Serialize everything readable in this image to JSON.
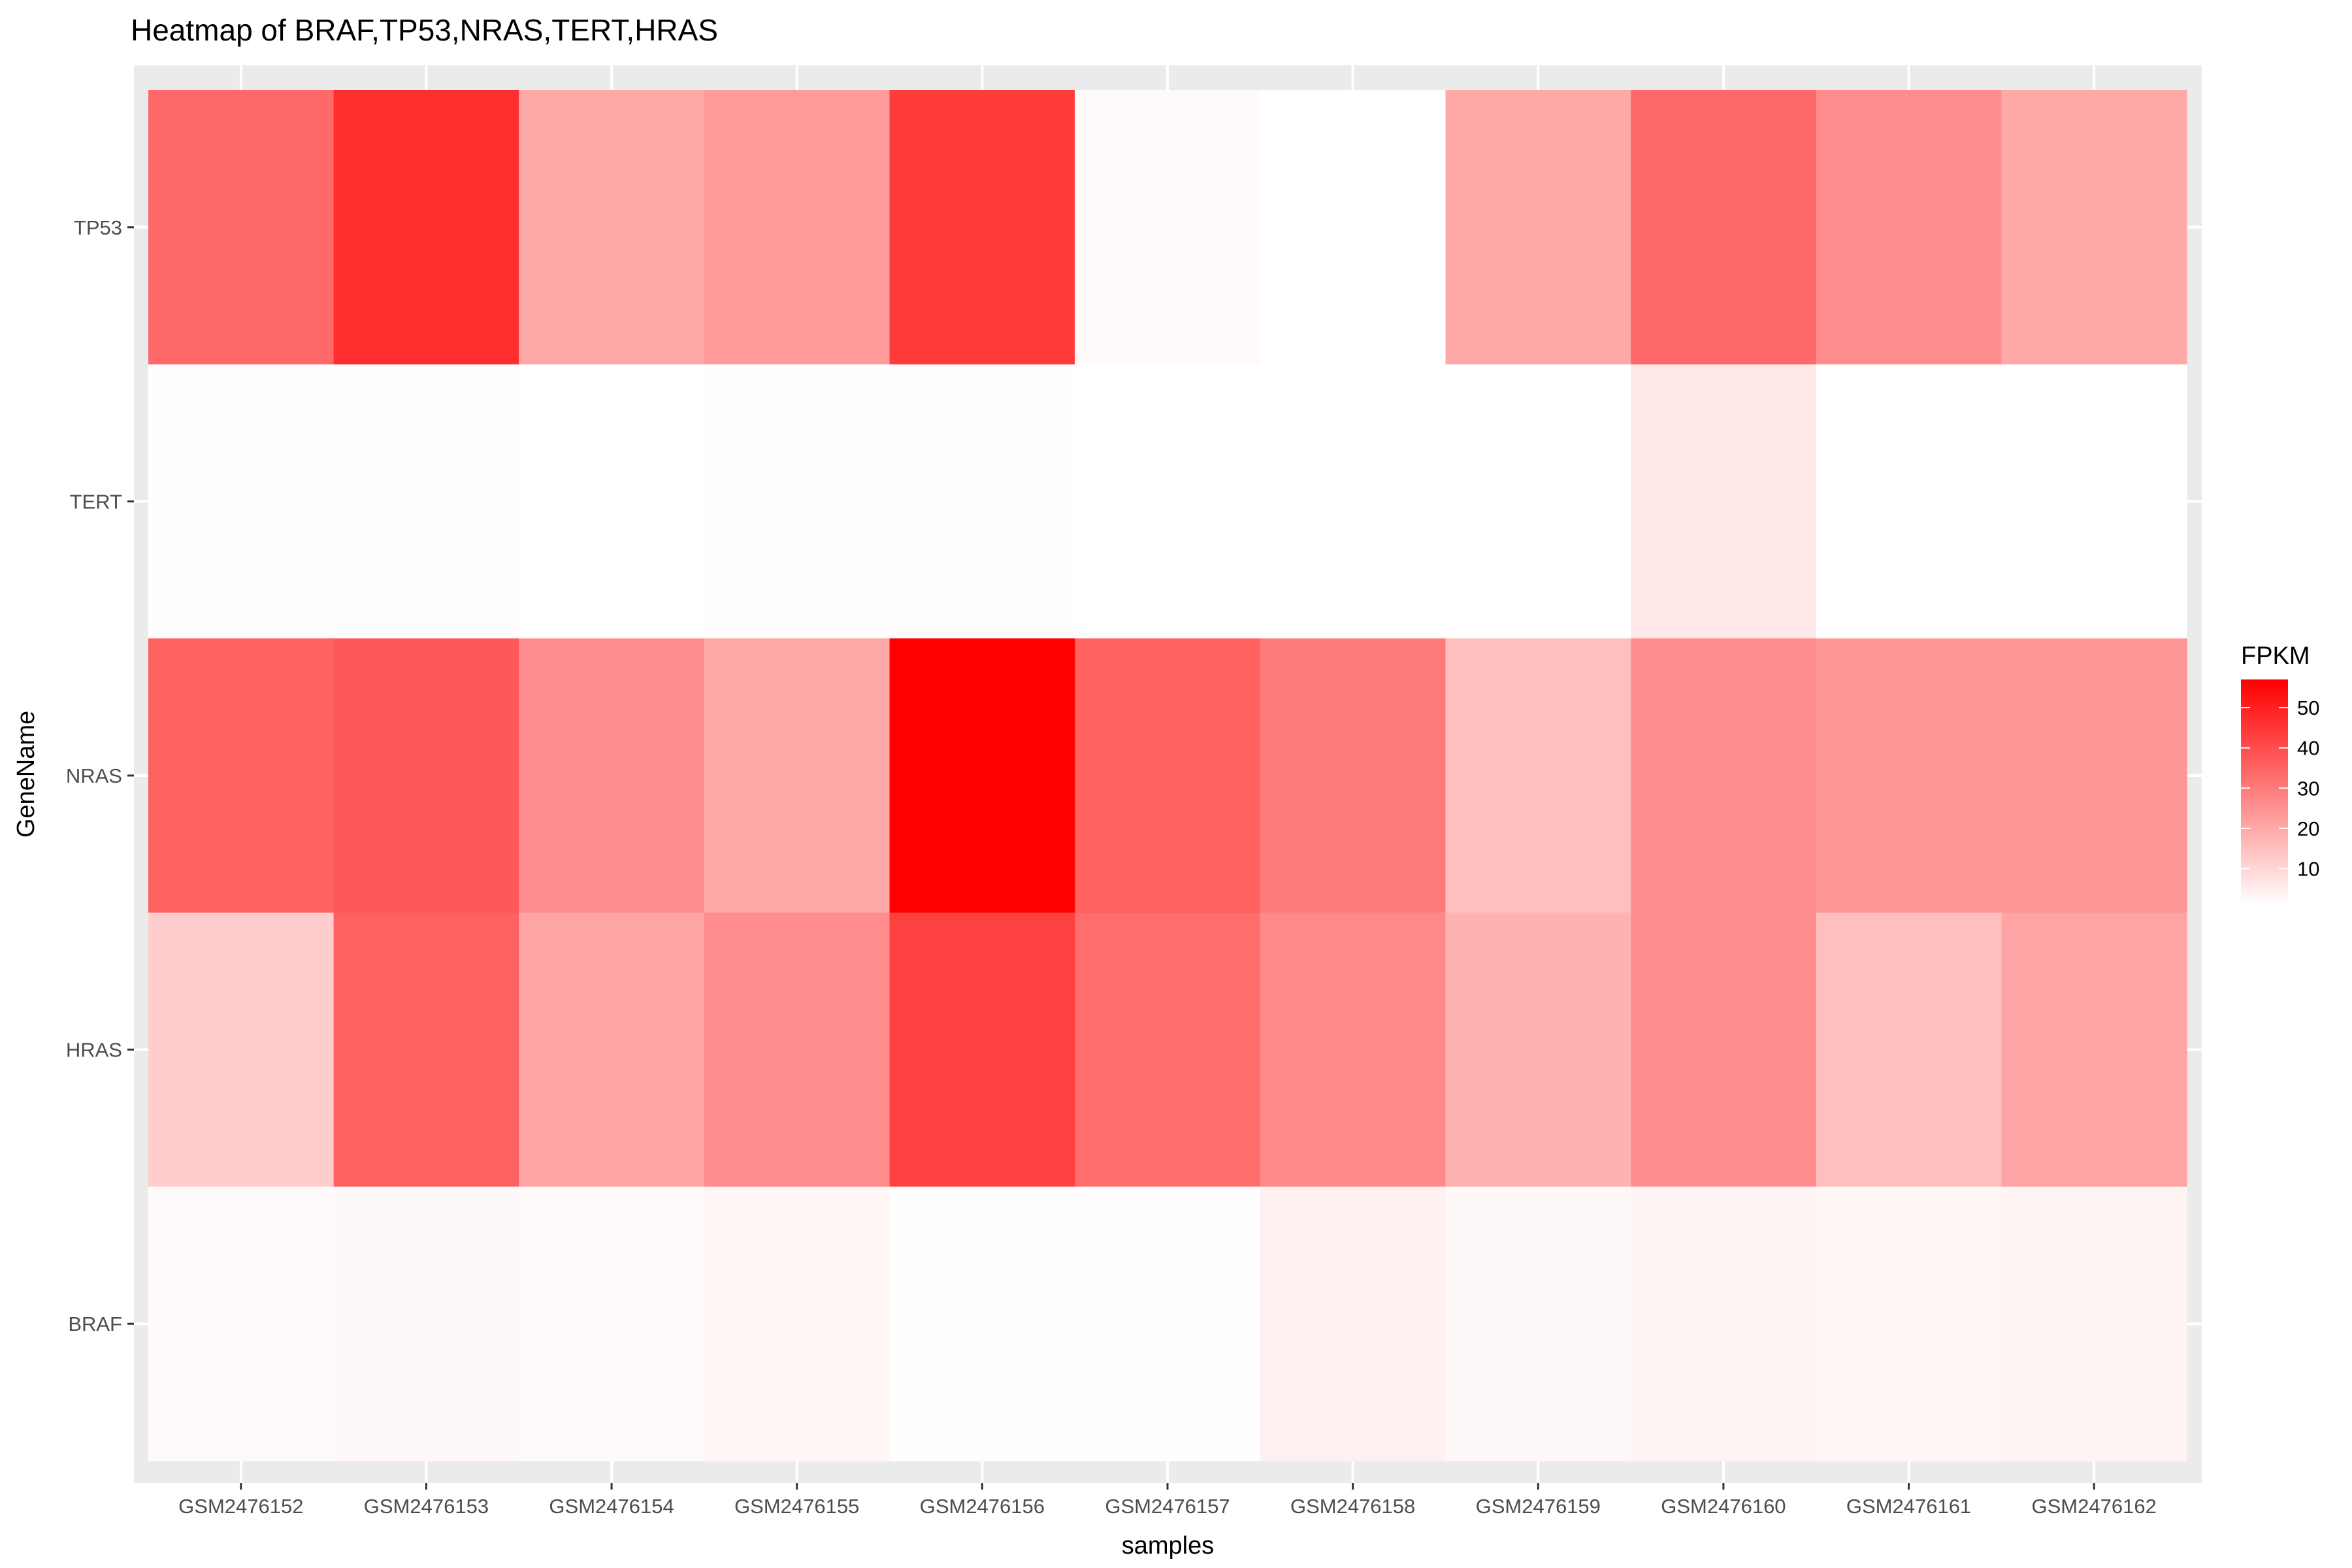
{
  "chart_data": {
    "type": "heatmap",
    "title": "Heatmap of BRAF,TP53,NRAS,TERT,HRAS",
    "xlabel": "samples",
    "ylabel": "GeneName",
    "x": [
      "GSM2476152",
      "GSM2476153",
      "GSM2476154",
      "GSM2476155",
      "GSM2476156",
      "GSM2476157",
      "GSM2476158",
      "GSM2476159",
      "GSM2476160",
      "GSM2476161",
      "GSM2476162"
    ],
    "y": [
      "TP53",
      "TERT",
      "NRAS",
      "HRAS",
      "BRAF"
    ],
    "values": [
      [
        34,
        47,
        20,
        23,
        44,
        2,
        1,
        20,
        34,
        26,
        20
      ],
      [
        1.5,
        1.5,
        1,
        1.5,
        1.5,
        1,
        1,
        1,
        6,
        1,
        1
      ],
      [
        36,
        38,
        26,
        20,
        57,
        36,
        30,
        15,
        26,
        24,
        24
      ],
      [
        12,
        36,
        21,
        26,
        43,
        33,
        27,
        18,
        26,
        15,
        21
      ],
      [
        2,
        2.5,
        2,
        3,
        1.5,
        1.5,
        4,
        2.5,
        3.5,
        3,
        3.5
      ]
    ],
    "legend": {
      "title": "FPKM",
      "ticks": [
        10,
        20,
        30,
        40,
        50
      ],
      "min": 1,
      "max": 57,
      "low_color": "#ffffff",
      "high_color": "#ff0000",
      "placement": "right"
    },
    "panel_background": "#ebebeb",
    "grid_color": "#ffffff",
    "grid": true
  }
}
